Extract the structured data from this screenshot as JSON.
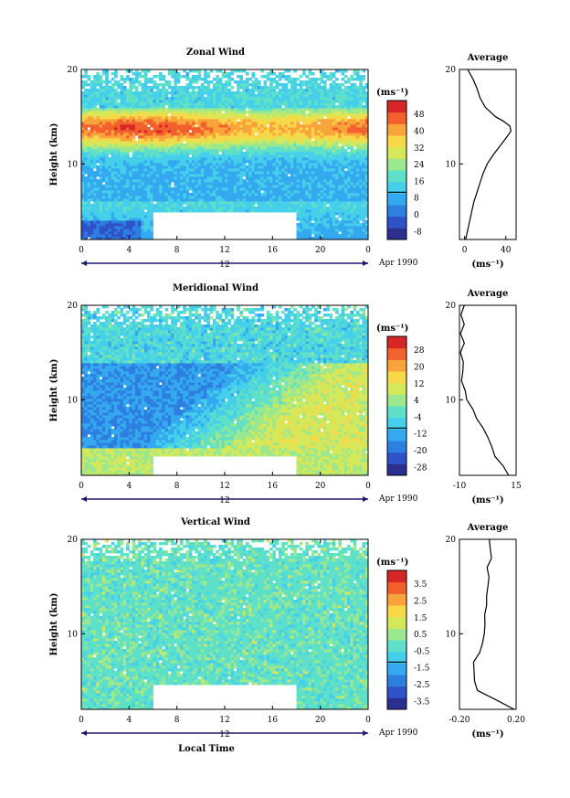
{
  "chart_data": [
    {
      "type": "heatmap",
      "title": "Zonal Wind",
      "ylabel": "Height (km)",
      "xlabel": "",
      "x_ticks": [
        "0",
        "4",
        "8",
        "12",
        "16",
        "20",
        "0"
      ],
      "y_ticks": [
        "20",
        "10"
      ],
      "xlim": [
        0,
        24
      ],
      "ylim": [
        2,
        20
      ],
      "date_label": "12",
      "month_label": "Apr 1990",
      "colorbar_unit": "(ms⁻¹)",
      "colorbar_ticks": [
        "48",
        "40",
        "32",
        "24",
        "16",
        "8",
        "0",
        "-8"
      ],
      "colorbar_range": [
        -12,
        52
      ],
      "field": {
        "base": 8,
        "jet_height": 13.8,
        "jet_peak": 46,
        "jet_width": 1.5,
        "upper_value": 14,
        "noise": 3
      },
      "missing_block": {
        "x": [
          6,
          18
        ],
        "y": [
          2,
          5
        ]
      },
      "average_profile": {
        "title": "Average",
        "xlabel": "(ms⁻¹)",
        "x_ticks": [
          "0",
          "40"
        ],
        "y_ticks": [
          "20",
          "10"
        ],
        "xlim": [
          -5,
          50
        ],
        "heights": [
          2,
          3,
          4,
          5,
          6,
          7,
          8,
          9,
          10,
          11,
          12,
          13,
          13.5,
          14,
          14.5,
          15,
          16,
          17,
          18,
          19,
          20
        ],
        "values": [
          1,
          3,
          5,
          7,
          9,
          12,
          15,
          18,
          22,
          28,
          35,
          42,
          45,
          44,
          38,
          30,
          20,
          15,
          12,
          8,
          3
        ]
      }
    },
    {
      "type": "heatmap",
      "title": "Meridional Wind",
      "ylabel": "Height (km)",
      "xlabel": "",
      "x_ticks": [
        "0",
        "4",
        "8",
        "12",
        "16",
        "20",
        "0"
      ],
      "y_ticks": [
        "20",
        "10"
      ],
      "xlim": [
        0,
        24
      ],
      "ylim": [
        2,
        20
      ],
      "date_label": "12",
      "month_label": "Apr 1990",
      "colorbar_unit": "(ms⁻¹)",
      "colorbar_ticks": [
        "28",
        "20",
        "12",
        "4",
        "-4",
        "-12",
        "-20",
        "-28"
      ],
      "colorbar_range": [
        -32,
        32
      ],
      "field": {
        "west_value": -16,
        "east_value": 8,
        "upper_value": -6,
        "noise": 4
      },
      "missing_block": {
        "x": [
          6,
          18
        ],
        "y": [
          2,
          4
        ]
      },
      "average_profile": {
        "title": "Average",
        "xlabel": "(ms⁻¹)",
        "x_ticks": [
          "-10",
          "15"
        ],
        "y_ticks": [
          "20",
          "10"
        ],
        "xlim": [
          -10,
          15
        ],
        "heights": [
          2,
          3,
          4,
          5,
          6,
          7,
          8,
          9,
          10,
          11,
          12,
          13,
          14,
          15,
          16,
          17,
          18,
          19,
          20
        ],
        "values": [
          12,
          9,
          6,
          4,
          2,
          0,
          -2,
          -4,
          -7,
          -8,
          -9,
          -9,
          -8,
          -9,
          -8,
          -9,
          -8,
          -9,
          -8
        ]
      }
    },
    {
      "type": "heatmap",
      "title": "Vertical Wind",
      "ylabel": "Height (km)",
      "xlabel": "Local Time",
      "x_ticks": [
        "0",
        "4",
        "8",
        "12",
        "16",
        "20",
        "0"
      ],
      "y_ticks": [
        "20",
        "10"
      ],
      "xlim": [
        0,
        24
      ],
      "ylim": [
        2,
        20
      ],
      "date_label": "12",
      "month_label": "Apr 1990",
      "colorbar_unit": "(ms⁻¹)",
      "colorbar_ticks": [
        "3.5",
        "2.5",
        "1.5",
        "0.5",
        "-0.5",
        "-1.5",
        "-2.5",
        "-3.5"
      ],
      "colorbar_range": [
        -4,
        4
      ],
      "field": {
        "base": -0.3,
        "noise": 0.5
      },
      "missing_block": {
        "x": [
          6,
          18
        ],
        "y": [
          2,
          4.5
        ]
      },
      "average_profile": {
        "title": "Average",
        "xlabel": "(ms⁻¹)",
        "x_ticks": [
          "-0.20",
          "0.20"
        ],
        "y_ticks": [
          "20",
          "10"
        ],
        "xlim": [
          -0.2,
          0.2
        ],
        "heights": [
          2,
          3,
          4,
          5,
          6,
          7,
          8,
          9,
          10,
          11,
          12,
          13,
          14,
          15,
          16,
          17,
          18,
          19,
          20
        ],
        "values": [
          0.18,
          0.05,
          -0.08,
          -0.1,
          -0.09,
          -0.1,
          -0.05,
          -0.04,
          -0.03,
          -0.02,
          -0.02,
          -0.01,
          -0.01,
          0.0,
          0.01,
          0.0,
          0.02,
          0.01,
          0.02
        ]
      }
    }
  ],
  "colors": {
    "colormap": [
      "#2b2f8f",
      "#2e52c8",
      "#2d7fe0",
      "#35a9ef",
      "#45cfea",
      "#5fe0c8",
      "#9be88e",
      "#d4e85a",
      "#f6d848",
      "#f9a43a",
      "#f2602e",
      "#d72626"
    ],
    "missing": "#ffffff",
    "axis": "#000000",
    "date_bar": "#1a1a6e"
  }
}
